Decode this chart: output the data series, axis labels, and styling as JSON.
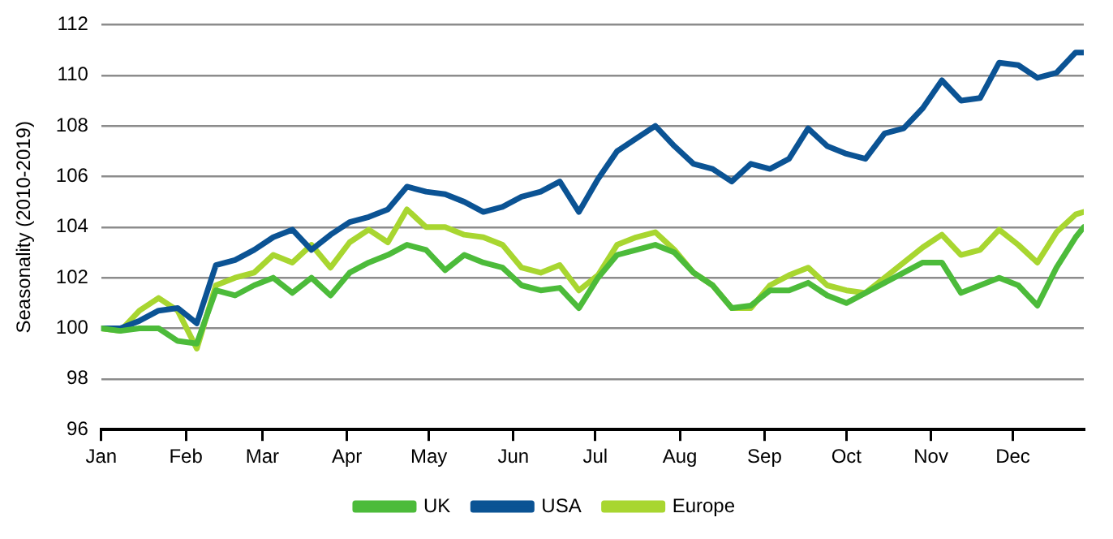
{
  "chart_data": {
    "type": "line",
    "ylabel": "Seasonality (2010-2019)",
    "x": [
      "--01-01",
      "--01-08",
      "--01-15",
      "--01-22",
      "--01-29",
      "--02-05",
      "--02-12",
      "--02-19",
      "--02-26",
      "--03-05",
      "--03-12",
      "--03-19",
      "--03-26",
      "--04-02",
      "--04-09",
      "--04-16",
      "--04-23",
      "--04-30",
      "--05-07",
      "--05-14",
      "--05-21",
      "--05-28",
      "--06-04",
      "--06-11",
      "--06-18",
      "--06-25",
      "--07-02",
      "--07-09",
      "--07-16",
      "--07-23",
      "--07-30",
      "--08-06",
      "--08-13",
      "--08-20",
      "--08-27",
      "--09-03",
      "--09-10",
      "--09-17",
      "--09-24",
      "--10-01",
      "--10-08",
      "--10-15",
      "--10-22",
      "--10-29",
      "--11-05",
      "--11-12",
      "--11-19",
      "--11-26",
      "--12-03",
      "--12-10",
      "--12-17",
      "--12-24",
      "--12-27"
    ],
    "series": [
      {
        "name": "UK",
        "color": "#4cbb3a",
        "values": [
          100.0,
          99.9,
          100.0,
          100.0,
          99.5,
          99.4,
          101.5,
          101.3,
          101.7,
          102.0,
          101.4,
          102.0,
          101.3,
          102.2,
          102.6,
          102.9,
          103.3,
          103.1,
          102.3,
          102.9,
          102.6,
          102.4,
          101.7,
          101.5,
          101.6,
          100.8,
          102.0,
          102.9,
          103.1,
          103.3,
          103.0,
          102.2,
          101.7,
          100.8,
          100.9,
          101.5,
          101.5,
          101.8,
          101.3,
          101.0,
          101.4,
          101.8,
          102.2,
          102.6,
          102.6,
          101.4,
          101.7,
          102.0,
          101.7,
          100.9,
          102.4,
          103.6,
          104.0
        ]
      },
      {
        "name": "USA",
        "color": "#0b5394",
        "values": [
          100.0,
          100.0,
          100.3,
          100.7,
          100.8,
          100.2,
          102.5,
          102.7,
          103.1,
          103.6,
          103.9,
          103.1,
          103.7,
          104.2,
          104.4,
          104.7,
          105.6,
          105.4,
          105.3,
          105.0,
          104.6,
          104.8,
          105.2,
          105.4,
          105.8,
          104.6,
          105.9,
          107.0,
          107.5,
          108.0,
          107.2,
          106.5,
          106.3,
          105.8,
          106.5,
          106.3,
          106.7,
          107.9,
          107.2,
          106.9,
          106.7,
          107.7,
          107.9,
          108.7,
          109.8,
          109.0,
          109.1,
          110.5,
          110.4,
          109.9,
          110.1,
          110.9,
          110.9
        ]
      },
      {
        "name": "Europe",
        "color": "#a8d630",
        "values": [
          100.0,
          99.9,
          100.7,
          101.2,
          100.7,
          99.2,
          101.7,
          102.0,
          102.2,
          102.9,
          102.6,
          103.3,
          102.4,
          103.4,
          103.9,
          103.4,
          104.7,
          104.0,
          104.0,
          103.7,
          103.6,
          103.3,
          102.4,
          102.2,
          102.5,
          101.5,
          102.1,
          103.3,
          103.6,
          103.8,
          103.1,
          102.2,
          101.7,
          100.8,
          100.8,
          101.7,
          102.1,
          102.4,
          101.7,
          101.5,
          101.4,
          102.0,
          102.6,
          103.2,
          103.7,
          102.9,
          103.1,
          103.9,
          103.3,
          102.6,
          103.8,
          104.5,
          104.6
        ]
      }
    ],
    "xlim": [
      "--01-01",
      "--12-27"
    ],
    "xticks": [
      {
        "value": "--01-01",
        "label": "Jan"
      },
      {
        "value": "--02-01",
        "label": "Feb"
      },
      {
        "value": "--03-01",
        "label": "Mar"
      },
      {
        "value": "--04-01",
        "label": "Apr"
      },
      {
        "value": "--05-01",
        "label": "May"
      },
      {
        "value": "--06-01",
        "label": "Jun"
      },
      {
        "value": "--07-01",
        "label": "Jul"
      },
      {
        "value": "--08-01",
        "label": "Aug"
      },
      {
        "value": "--09-01",
        "label": "Sep"
      },
      {
        "value": "--10-01",
        "label": "Oct"
      },
      {
        "value": "--11-01",
        "label": "Nov"
      },
      {
        "value": "--12-01",
        "label": "Dec"
      }
    ],
    "ylim": [
      96,
      112
    ],
    "yticks": [
      96,
      98,
      100,
      102,
      104,
      106,
      108,
      110,
      112
    ],
    "grid": "y",
    "legend": "bottom",
    "marker": "none",
    "line_style": "solid"
  }
}
